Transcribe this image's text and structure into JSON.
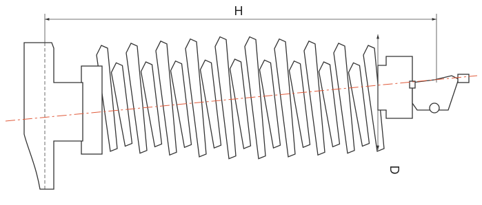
{
  "dimensions": {
    "height_label": "H",
    "diameter_label": "D"
  }
}
